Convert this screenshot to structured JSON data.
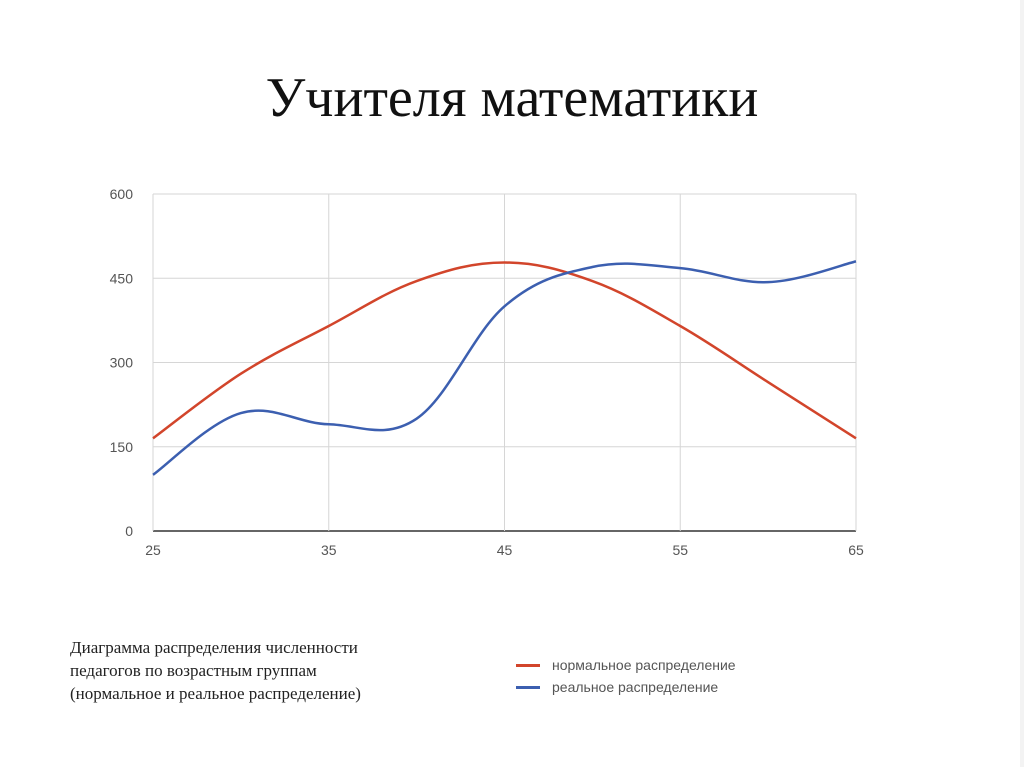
{
  "title": "Учителя математики",
  "caption": {
    "line1": "Диаграмма распределения численности",
    "line2": "педагогов по возрастным группам",
    "line3": "(нормальное и реальное распределение)"
  },
  "legend": [
    {
      "label": "нормальное распределение",
      "color": "#d2452b"
    },
    {
      "label": "реальное распределение",
      "color": "#3c5fb0"
    }
  ],
  "chart_data": {
    "type": "line",
    "title": "",
    "xlabel": "",
    "ylabel": "",
    "x": [
      25,
      30,
      35,
      40,
      45,
      50,
      55,
      60,
      65
    ],
    "x_ticks": [
      25,
      35,
      45,
      55,
      65
    ],
    "y_ticks": [
      0,
      150,
      300,
      450,
      600
    ],
    "xlim": [
      25,
      65
    ],
    "ylim": [
      0,
      600
    ],
    "grid": true,
    "legend_position": "bottom-right",
    "smooth": true,
    "series": [
      {
        "name": "нормальное распределение",
        "color": "#d2452b",
        "values": [
          165,
          280,
          365,
          445,
          478,
          445,
          365,
          265,
          165
        ]
      },
      {
        "name": "реальное распределение",
        "color": "#3c5fb0",
        "values": [
          100,
          210,
          190,
          200,
          400,
          470,
          468,
          443,
          480
        ]
      }
    ]
  }
}
